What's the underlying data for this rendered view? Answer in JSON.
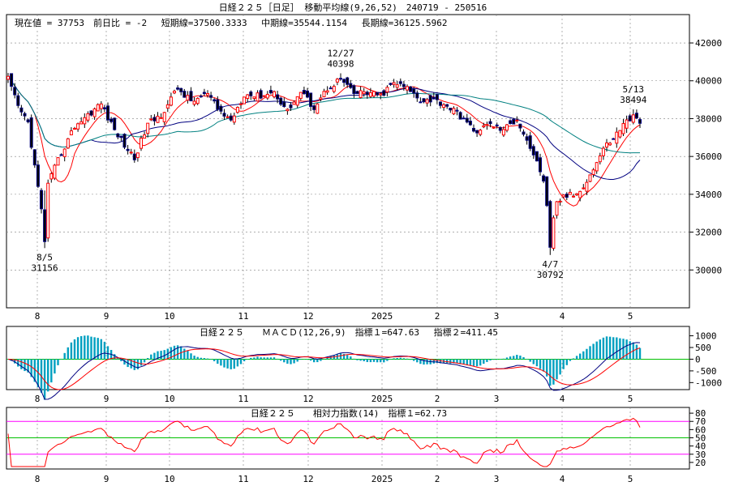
{
  "header": {
    "title": "日経２２５［日足］ 移動平均線(9,26,52)　240719 - 250516",
    "info": "現在値 = 37753　前日比 = -2　 短期線=37500.3333　 中期線=35544.1154　 長期線=36125.5962"
  },
  "colors": {
    "up_candle": "#ff0000",
    "down_candle": "#000080",
    "ma_short": "#ff0000",
    "ma_mid": "#000080",
    "ma_long": "#008080",
    "macd_line": "#000080",
    "signal_line": "#ff0000",
    "histogram": "#00a0c0",
    "rsi_line": "#ff0000",
    "rsi_band_upper": "#ff00ff",
    "rsi_band_mid": "#00c000",
    "grid": "#808080"
  },
  "chart_data": [
    {
      "type": "candlestick",
      "id": "price",
      "x_labels": [
        "8",
        "9",
        "10",
        "11",
        "12",
        "2025",
        "2",
        "3",
        "4",
        "5"
      ],
      "yticks": [
        30000,
        32000,
        34000,
        36000,
        38000,
        40000,
        42000
      ],
      "ylim": [
        28000,
        43500
      ],
      "grid": true,
      "series": [
        {
          "name": "短期線",
          "period": 9
        },
        {
          "name": "中期線",
          "period": 26
        },
        {
          "name": "長期線",
          "period": 52
        }
      ],
      "close_anchors": [
        [
          0,
          40100
        ],
        [
          3,
          38600
        ],
        [
          6,
          37800
        ],
        [
          11,
          32000
        ],
        [
          12,
          34500
        ],
        [
          15,
          35800
        ],
        [
          20,
          37600
        ],
        [
          24,
          38200
        ],
        [
          28,
          38800
        ],
        [
          31,
          37700
        ],
        [
          35,
          36600
        ],
        [
          38,
          35900
        ],
        [
          42,
          37700
        ],
        [
          46,
          38200
        ],
        [
          51,
          39600
        ],
        [
          55,
          38900
        ],
        [
          60,
          39300
        ],
        [
          63,
          38500
        ],
        [
          67,
          37900
        ],
        [
          71,
          39300
        ],
        [
          75,
          39200
        ],
        [
          80,
          39400
        ],
        [
          84,
          38400
        ],
        [
          88,
          39400
        ],
        [
          92,
          38600
        ],
        [
          96,
          39600
        ],
        [
          100,
          40100
        ],
        [
          104,
          39300
        ],
        [
          107,
          39400
        ],
        [
          112,
          39200
        ],
        [
          116,
          39900
        ],
        [
          120,
          39600
        ],
        [
          124,
          39000
        ],
        [
          128,
          39000
        ],
        [
          132,
          38700
        ],
        [
          137,
          38000
        ],
        [
          140,
          37300
        ],
        [
          145,
          37700
        ],
        [
          149,
          37400
        ],
        [
          153,
          38000
        ],
        [
          157,
          36500
        ],
        [
          161,
          34800
        ],
        [
          163,
          31800
        ],
        [
          165,
          33500
        ],
        [
          167,
          33900
        ],
        [
          171,
          34000
        ],
        [
          175,
          35000
        ],
        [
          179,
          36400
        ],
        [
          183,
          37200
        ],
        [
          186,
          37900
        ],
        [
          188,
          38100
        ],
        [
          190,
          37753
        ]
      ],
      "annotations": [
        {
          "label": "8/5",
          "value": "31156"
        },
        {
          "label": "12/27",
          "value": "40398"
        },
        {
          "label": "4/7",
          "value": "30792"
        },
        {
          "label": "5/13",
          "value": "38494"
        }
      ]
    },
    {
      "type": "macd",
      "id": "macd",
      "title": "日経２２５　　ＭＡＣＤ(12,26,9)　指標１=647.63　 指標２=411.45",
      "yticks": [
        1000,
        500,
        0,
        -500,
        -1000
      ],
      "ylim": [
        -1300,
        1400
      ],
      "series": [
        {
          "name": "指標１",
          "value": 647.63
        },
        {
          "name": "指標２",
          "value": 411.45
        }
      ]
    },
    {
      "type": "line",
      "id": "rsi",
      "title": "日経２２５　　相対力指数(14)　指標１=62.73",
      "yticks": [
        80,
        70,
        60,
        50,
        40,
        30,
        20
      ],
      "ylim": [
        12,
        87
      ],
      "bands": [
        70,
        50,
        30
      ],
      "series": [
        {
          "name": "指標１",
          "value": 62.73
        }
      ]
    }
  ]
}
